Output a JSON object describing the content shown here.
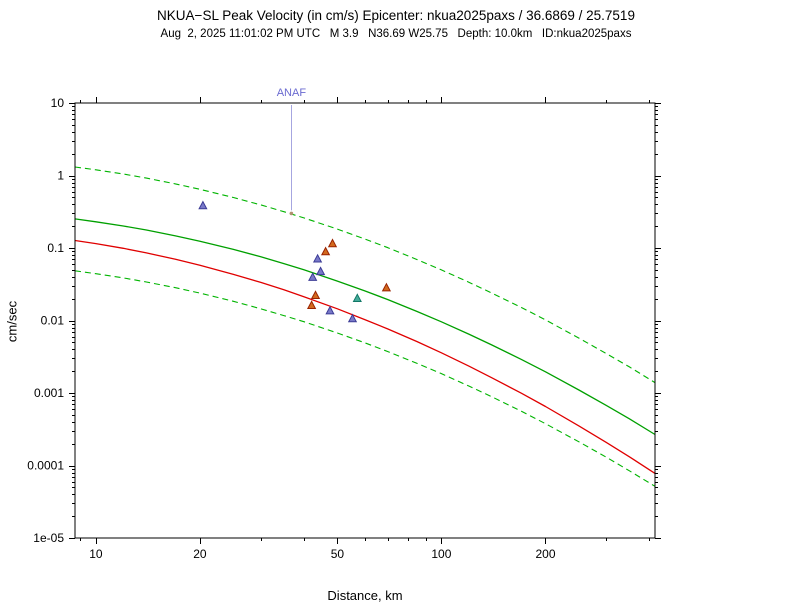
{
  "header": {
    "title": "NKUA−SL Peak Velocity (in cm/s) Epicenter: nkua2025paxs / 36.6869 / 25.7519",
    "subtitle": "Aug  2, 2025 11:01:02 PM UTC   M 3.9   N36.69 W25.75   Depth: 10.0km   ID:nkua2025paxs"
  },
  "chart_data": {
    "type": "scatter",
    "title": "NKUA−SL Peak Velocity (in cm/s) Epicenter: nkua2025paxs / 36.6869 / 25.7519",
    "xlabel": "Distance, km",
    "ylabel": "cm/sec",
    "xscale": "log",
    "yscale": "log",
    "xlim": [
      8.7,
      415
    ],
    "ylim": [
      1e-05,
      10
    ],
    "grid": false,
    "frame_color": "#000000",
    "x_major_ticks": [
      {
        "v": 10,
        "label": "10"
      },
      {
        "v": 20,
        "label": "20"
      },
      {
        "v": 50,
        "label": "50"
      },
      {
        "v": 100,
        "label": "100"
      },
      {
        "v": 200,
        "label": "200"
      }
    ],
    "x_minor_ticks": [
      9,
      30,
      40,
      60,
      70,
      80,
      90,
      300,
      400
    ],
    "y_major_ticks": [
      {
        "v": 10,
        "label": "10"
      },
      {
        "v": 1,
        "label": "1"
      },
      {
        "v": 0.1,
        "label": "0.1"
      },
      {
        "v": 0.01,
        "label": "0.01"
      },
      {
        "v": 0.001,
        "label": "0.001"
      },
      {
        "v": 0.0001,
        "label": "0.0001"
      },
      {
        "v": 1e-05,
        "label": "1e-05"
      }
    ],
    "curves": [
      {
        "name": "upper-bound",
        "style": "dashed",
        "color": "#00b400",
        "width": 1.1,
        "x": [
          8.7,
          10,
          12,
          14,
          17,
          20,
          25,
          30,
          35,
          40,
          50,
          60,
          70,
          85,
          100,
          120,
          140,
          170,
          200,
          250,
          300,
          350,
          415
        ],
        "y": [
          1.31,
          1.2,
          1.05,
          0.92,
          0.766,
          0.645,
          0.497,
          0.393,
          0.317,
          0.26,
          0.182,
          0.133,
          0.101,
          0.0692,
          0.0499,
          0.0337,
          0.0239,
          0.0152,
          0.0102,
          0.00572,
          0.0035,
          0.00229,
          0.00139
        ]
      },
      {
        "name": "median",
        "style": "solid",
        "color": "#00a000",
        "width": 1.3,
        "x": [
          8.7,
          10,
          12,
          14,
          17,
          20,
          25,
          30,
          35,
          40,
          50,
          60,
          70,
          85,
          100,
          120,
          140,
          170,
          200,
          250,
          300,
          350,
          415
        ],
        "y": [
          0.252,
          0.23,
          0.201,
          0.177,
          0.147,
          0.124,
          0.0956,
          0.0755,
          0.061,
          0.05,
          0.035,
          0.0256,
          0.0194,
          0.0133,
          0.0096,
          0.00649,
          0.0046,
          0.00292,
          0.00196,
          0.0011,
          0.000674,
          0.00044,
          0.000268
        ]
      },
      {
        "name": "lower-bound",
        "style": "dashed",
        "color": "#00b400",
        "width": 1.1,
        "x": [
          8.7,
          10,
          12,
          14,
          17,
          20,
          25,
          30,
          35,
          40,
          50,
          60,
          70,
          85,
          100,
          120,
          140,
          170,
          200,
          250,
          300,
          350,
          415
        ],
        "y": [
          0.0485,
          0.0442,
          0.0387,
          0.034,
          0.0283,
          0.0239,
          0.0184,
          0.0145,
          0.0117,
          0.00962,
          0.00673,
          0.00492,
          0.00373,
          0.00256,
          0.00185,
          0.00125,
          0.000885,
          0.000562,
          0.000377,
          0.000212,
          0.00013,
          8.46e-05,
          5.16e-05
        ]
      },
      {
        "name": "red-median",
        "style": "solid",
        "color": "#e00000",
        "width": 1.3,
        "x": [
          8.7,
          10,
          12,
          14,
          17,
          20,
          25,
          30,
          35,
          40,
          50,
          60,
          70,
          85,
          100,
          120,
          140,
          170,
          200,
          250,
          300,
          350,
          415
        ],
        "y": [
          0.127,
          0.115,
          0.0989,
          0.0855,
          0.0698,
          0.0577,
          0.0433,
          0.0335,
          0.0265,
          0.0213,
          0.0145,
          0.0103,
          0.00764,
          0.00511,
          0.00358,
          0.00235,
          0.00162,
          0.000997,
          0.000651,
          0.000352,
          0.000208,
          0.000132,
          7.78e-05
        ]
      }
    ],
    "stations": [
      {
        "group": "blue-stations",
        "fill": "#7878c8",
        "edge": "#3c3c96",
        "points": [
          [
            20.4,
            0.38
          ],
          [
            43.8,
            0.07
          ],
          [
            44.7,
            0.047
          ],
          [
            42.4,
            0.039
          ],
          [
            47.6,
            0.0135
          ],
          [
            55.3,
            0.0105
          ]
        ]
      },
      {
        "group": "orange-stations",
        "fill": "#d2691e",
        "edge": "#992200",
        "points": [
          [
            48.4,
            0.114
          ],
          [
            46.2,
            0.088
          ],
          [
            69.3,
            0.028
          ],
          [
            43.2,
            0.022
          ],
          [
            42.1,
            0.016
          ]
        ]
      },
      {
        "group": "teal-stations",
        "fill": "#44aa99",
        "edge": "#117766",
        "points": [
          [
            57.1,
            0.02
          ]
        ]
      }
    ],
    "annotation": {
      "label": "ANAF",
      "x": 36.8,
      "y": 0.3,
      "text_color": "#6a6ad0",
      "line_color": "#9090d8",
      "marker_color": "#b09070"
    }
  }
}
